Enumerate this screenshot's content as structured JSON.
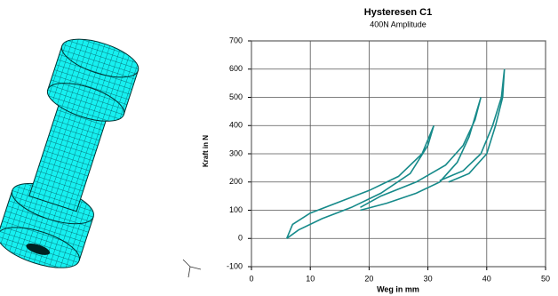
{
  "chart_data": {
    "type": "line",
    "title": "Hysteresen C1",
    "subtitle": "400N Amplitude",
    "x_label": "Weg in mm",
    "y_label": "Kraft in N",
    "xlim": [
      0,
      50
    ],
    "xticks": [
      0,
      10,
      20,
      30,
      40,
      50
    ],
    "ylim": [
      -100,
      700
    ],
    "yticks": [
      -100,
      0,
      100,
      200,
      300,
      400,
      500,
      600,
      700
    ],
    "grid": true,
    "series": [
      {
        "color": "#168a8a",
        "x": [
          6,
          8,
          12,
          17,
          22,
          27,
          30,
          31,
          29,
          25,
          20,
          15,
          10,
          7,
          6
        ],
        "values": [
          0,
          30,
          70,
          110,
          160,
          230,
          330,
          400,
          300,
          220,
          170,
          130,
          90,
          50,
          0
        ]
      },
      {
        "color": "#168a8a",
        "x": [
          18.5,
          23,
          28,
          32,
          35,
          37,
          39,
          38,
          36,
          33,
          28,
          22,
          18.5
        ],
        "values": [
          100,
          125,
          160,
          200,
          270,
          360,
          500,
          420,
          330,
          260,
          200,
          150,
          110
        ]
      },
      {
        "color": "#168a8a",
        "x": [
          33.5,
          37,
          40,
          41.5,
          42.7,
          43,
          42.5,
          41,
          39,
          36,
          32
        ],
        "values": [
          200,
          230,
          300,
          400,
          500,
          600,
          500,
          400,
          300,
          240,
          205
        ]
      }
    ]
  }
}
